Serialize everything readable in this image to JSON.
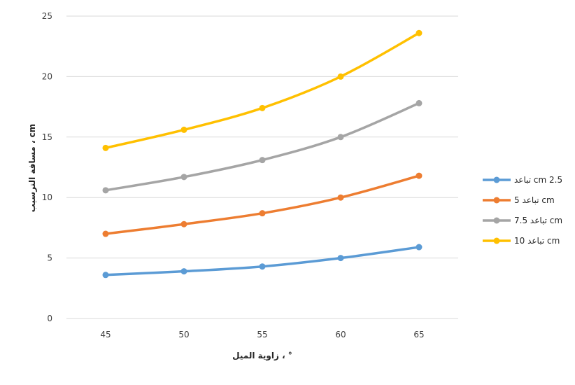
{
  "chart_data": {
    "type": "line",
    "categories": [
      "45",
      "50",
      "55",
      "60",
      "65"
    ],
    "series": [
      {
        "name": "تباعد cm 2.5",
        "color": "#5B9BD5",
        "values": [
          3.6,
          3.9,
          4.3,
          5.0,
          5.9
        ]
      },
      {
        "name": "تباعد 5 cm",
        "color": "#ED7D31",
        "values": [
          7.0,
          7.8,
          8.7,
          10.0,
          11.8
        ]
      },
      {
        "name": "تباعد 7.5 cm",
        "color": "#A5A5A5",
        "values": [
          10.6,
          11.7,
          13.1,
          15.0,
          17.8
        ]
      },
      {
        "name": "تباعد 10 cm",
        "color": "#FFC000",
        "values": [
          14.1,
          15.6,
          17.4,
          20.0,
          23.6
        ]
      }
    ],
    "xlabel": "زاوية الميل ، °",
    "ylabel": "مسافة الترسيب ، cm",
    "ylim": [
      0,
      25
    ],
    "yticks": [
      "0",
      "5",
      "10",
      "15",
      "20",
      "25"
    ],
    "grid": "horizontal",
    "legend": "right"
  }
}
